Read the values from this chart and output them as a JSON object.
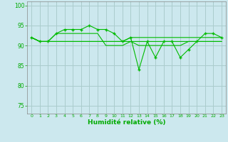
{
  "background_color": "#cce8ee",
  "grid_color": "#aacccc",
  "line_color": "#00bb00",
  "marker_color": "#00bb00",
  "xlabel": "Humidité relative (%)",
  "xlabel_color": "#00aa00",
  "tick_color": "#00aa00",
  "ylim": [
    73,
    101
  ],
  "xlim": [
    -0.5,
    23.5
  ],
  "yticks": [
    75,
    80,
    85,
    90,
    95,
    100
  ],
  "xticks": [
    0,
    1,
    2,
    3,
    4,
    5,
    6,
    7,
    8,
    9,
    10,
    11,
    12,
    13,
    14,
    15,
    16,
    17,
    18,
    19,
    20,
    21,
    22,
    23
  ],
  "series": [
    [
      92,
      91,
      91,
      93,
      94,
      94,
      94,
      95,
      94,
      94,
      93,
      91,
      92,
      84,
      91,
      87,
      91,
      91,
      87,
      89,
      91,
      93,
      93,
      92
    ],
    [
      92,
      91,
      91,
      93,
      93,
      93,
      93,
      93,
      93,
      90,
      90,
      90,
      91,
      90,
      90,
      90,
      90,
      90,
      90,
      91,
      91,
      91,
      91,
      91
    ],
    [
      92,
      91,
      91,
      91,
      91,
      91,
      91,
      91,
      91,
      91,
      91,
      91,
      92,
      92,
      92,
      92,
      92,
      92,
      92,
      92,
      92,
      92,
      92,
      92
    ],
    [
      92,
      91,
      91,
      91,
      91,
      91,
      91,
      91,
      91,
      91,
      91,
      91,
      91,
      91,
      91,
      91,
      91,
      91,
      91,
      91,
      91,
      91,
      91,
      91
    ]
  ]
}
